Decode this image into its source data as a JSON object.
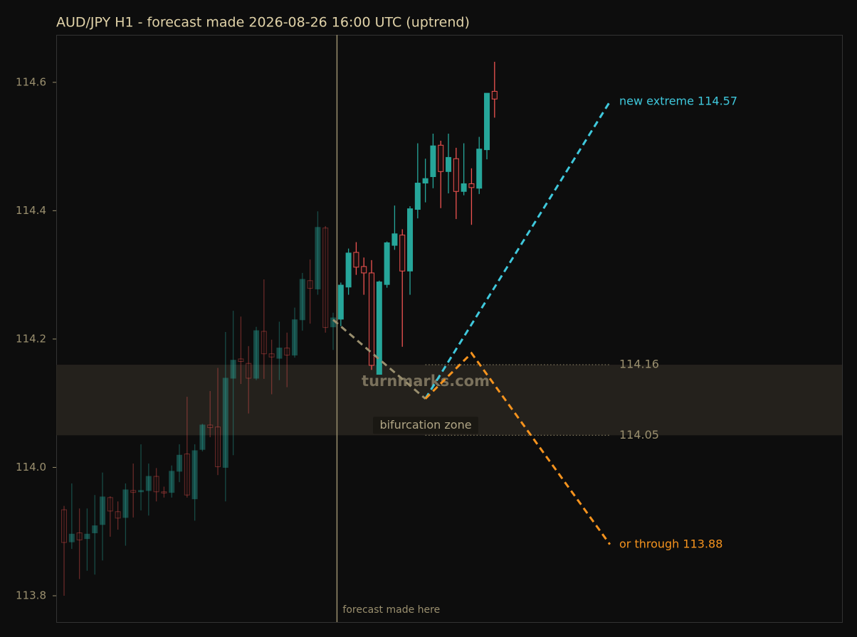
{
  "chart_data": {
    "type": "candlestick",
    "title": "AUD/JPY H1 - forecast made 2026-08-26 16:00 UTC (uptrend)",
    "open": [
      113.934,
      113.884,
      113.898,
      113.889,
      113.898,
      113.911,
      113.953,
      113.931,
      113.922,
      113.964,
      113.962,
      113.964,
      113.986,
      113.962,
      113.961,
      113.994,
      114.021,
      113.951,
      114.028,
      114.066,
      114.063,
      114.0,
      114.139,
      114.169,
      114.162,
      114.139,
      114.212,
      114.177,
      114.17,
      114.186,
      114.175,
      114.23,
      114.291,
      114.278,
      114.373,
      114.219,
      114.231,
      114.281,
      114.335,
      114.313,
      114.303,
      114.145,
      114.285,
      114.346,
      114.362,
      114.306,
      114.402,
      114.443,
      114.453,
      114.502,
      114.461,
      114.481,
      114.43,
      114.442,
      114.435,
      114.495,
      114.586
    ],
    "high": [
      113.94,
      113.975,
      113.936,
      113.936,
      113.957,
      113.992,
      113.955,
      113.947,
      113.975,
      114.006,
      114.036,
      114.006,
      113.999,
      113.97,
      114.003,
      114.036,
      114.11,
      114.036,
      114.068,
      114.119,
      114.155,
      114.211,
      114.244,
      114.235,
      114.189,
      114.219,
      114.293,
      114.199,
      114.227,
      114.21,
      114.249,
      114.303,
      114.324,
      114.399,
      114.376,
      114.241,
      114.288,
      114.341,
      114.351,
      114.327,
      114.323,
      114.291,
      114.352,
      114.408,
      114.371,
      114.407,
      114.505,
      114.481,
      114.52,
      114.509,
      114.52,
      114.498,
      114.505,
      114.466,
      114.515,
      114.583,
      114.632
    ],
    "low": [
      113.8,
      113.873,
      113.826,
      113.839,
      113.833,
      113.855,
      113.892,
      113.903,
      113.878,
      113.922,
      113.933,
      113.925,
      113.947,
      113.953,
      113.953,
      113.977,
      113.953,
      113.917,
      114.025,
      114.047,
      113.988,
      113.947,
      114.019,
      114.13,
      114.084,
      114.136,
      114.138,
      114.114,
      114.136,
      114.125,
      114.171,
      114.213,
      114.224,
      114.269,
      114.21,
      114.183,
      114.22,
      114.269,
      114.3,
      114.269,
      114.152,
      114.145,
      114.28,
      114.339,
      114.188,
      114.269,
      114.388,
      114.413,
      114.435,
      114.404,
      114.427,
      114.387,
      114.424,
      114.378,
      114.426,
      114.48,
      114.545
    ],
    "close": [
      113.883,
      113.896,
      113.887,
      113.896,
      113.909,
      113.954,
      113.932,
      113.921,
      113.965,
      113.961,
      113.964,
      113.986,
      113.962,
      113.96,
      113.994,
      114.019,
      113.957,
      114.026,
      114.066,
      114.062,
      114.001,
      114.139,
      114.167,
      114.165,
      114.139,
      114.213,
      114.177,
      114.172,
      114.186,
      114.175,
      114.23,
      114.293,
      114.279,
      114.374,
      114.218,
      114.233,
      114.284,
      114.334,
      114.312,
      114.303,
      114.159,
      114.289,
      114.35,
      114.364,
      114.306,
      114.403,
      114.443,
      114.45,
      114.501,
      114.461,
      114.483,
      114.43,
      114.442,
      114.436,
      114.496,
      114.583,
      114.574
    ],
    "up_color": "#26a69a",
    "down_color": "#ef5350",
    "xlim": [
      -1.02,
      101.2
    ],
    "ylim": [
      113.759,
      114.674
    ],
    "yticks": [
      113.8,
      {
        "value": 114.0,
        "label": "114.0"
      },
      114.2,
      114.4,
      114.6
    ],
    "forecast_x": 35.5,
    "forecast_label": "forecast made here",
    "zone": {
      "label": "bifurcation zone",
      "low": 114.05,
      "high": 114.16
    },
    "forecast_paths": [
      {
        "color": "#9a8f6e",
        "x": [
          35,
          47
        ],
        "values": [
          114.23,
          114.107
        ]
      },
      {
        "color": "#3fc8dc",
        "x": [
          47,
          71
        ],
        "values": [
          114.107,
          114.57
        ],
        "label": "new extreme 114.57"
      },
      {
        "color": "#f5931e",
        "x": [
          47,
          53,
          71
        ],
        "values": [
          114.107,
          114.178,
          113.88
        ],
        "label": "or through 113.88"
      }
    ],
    "watermark": "turnmarks.com"
  }
}
